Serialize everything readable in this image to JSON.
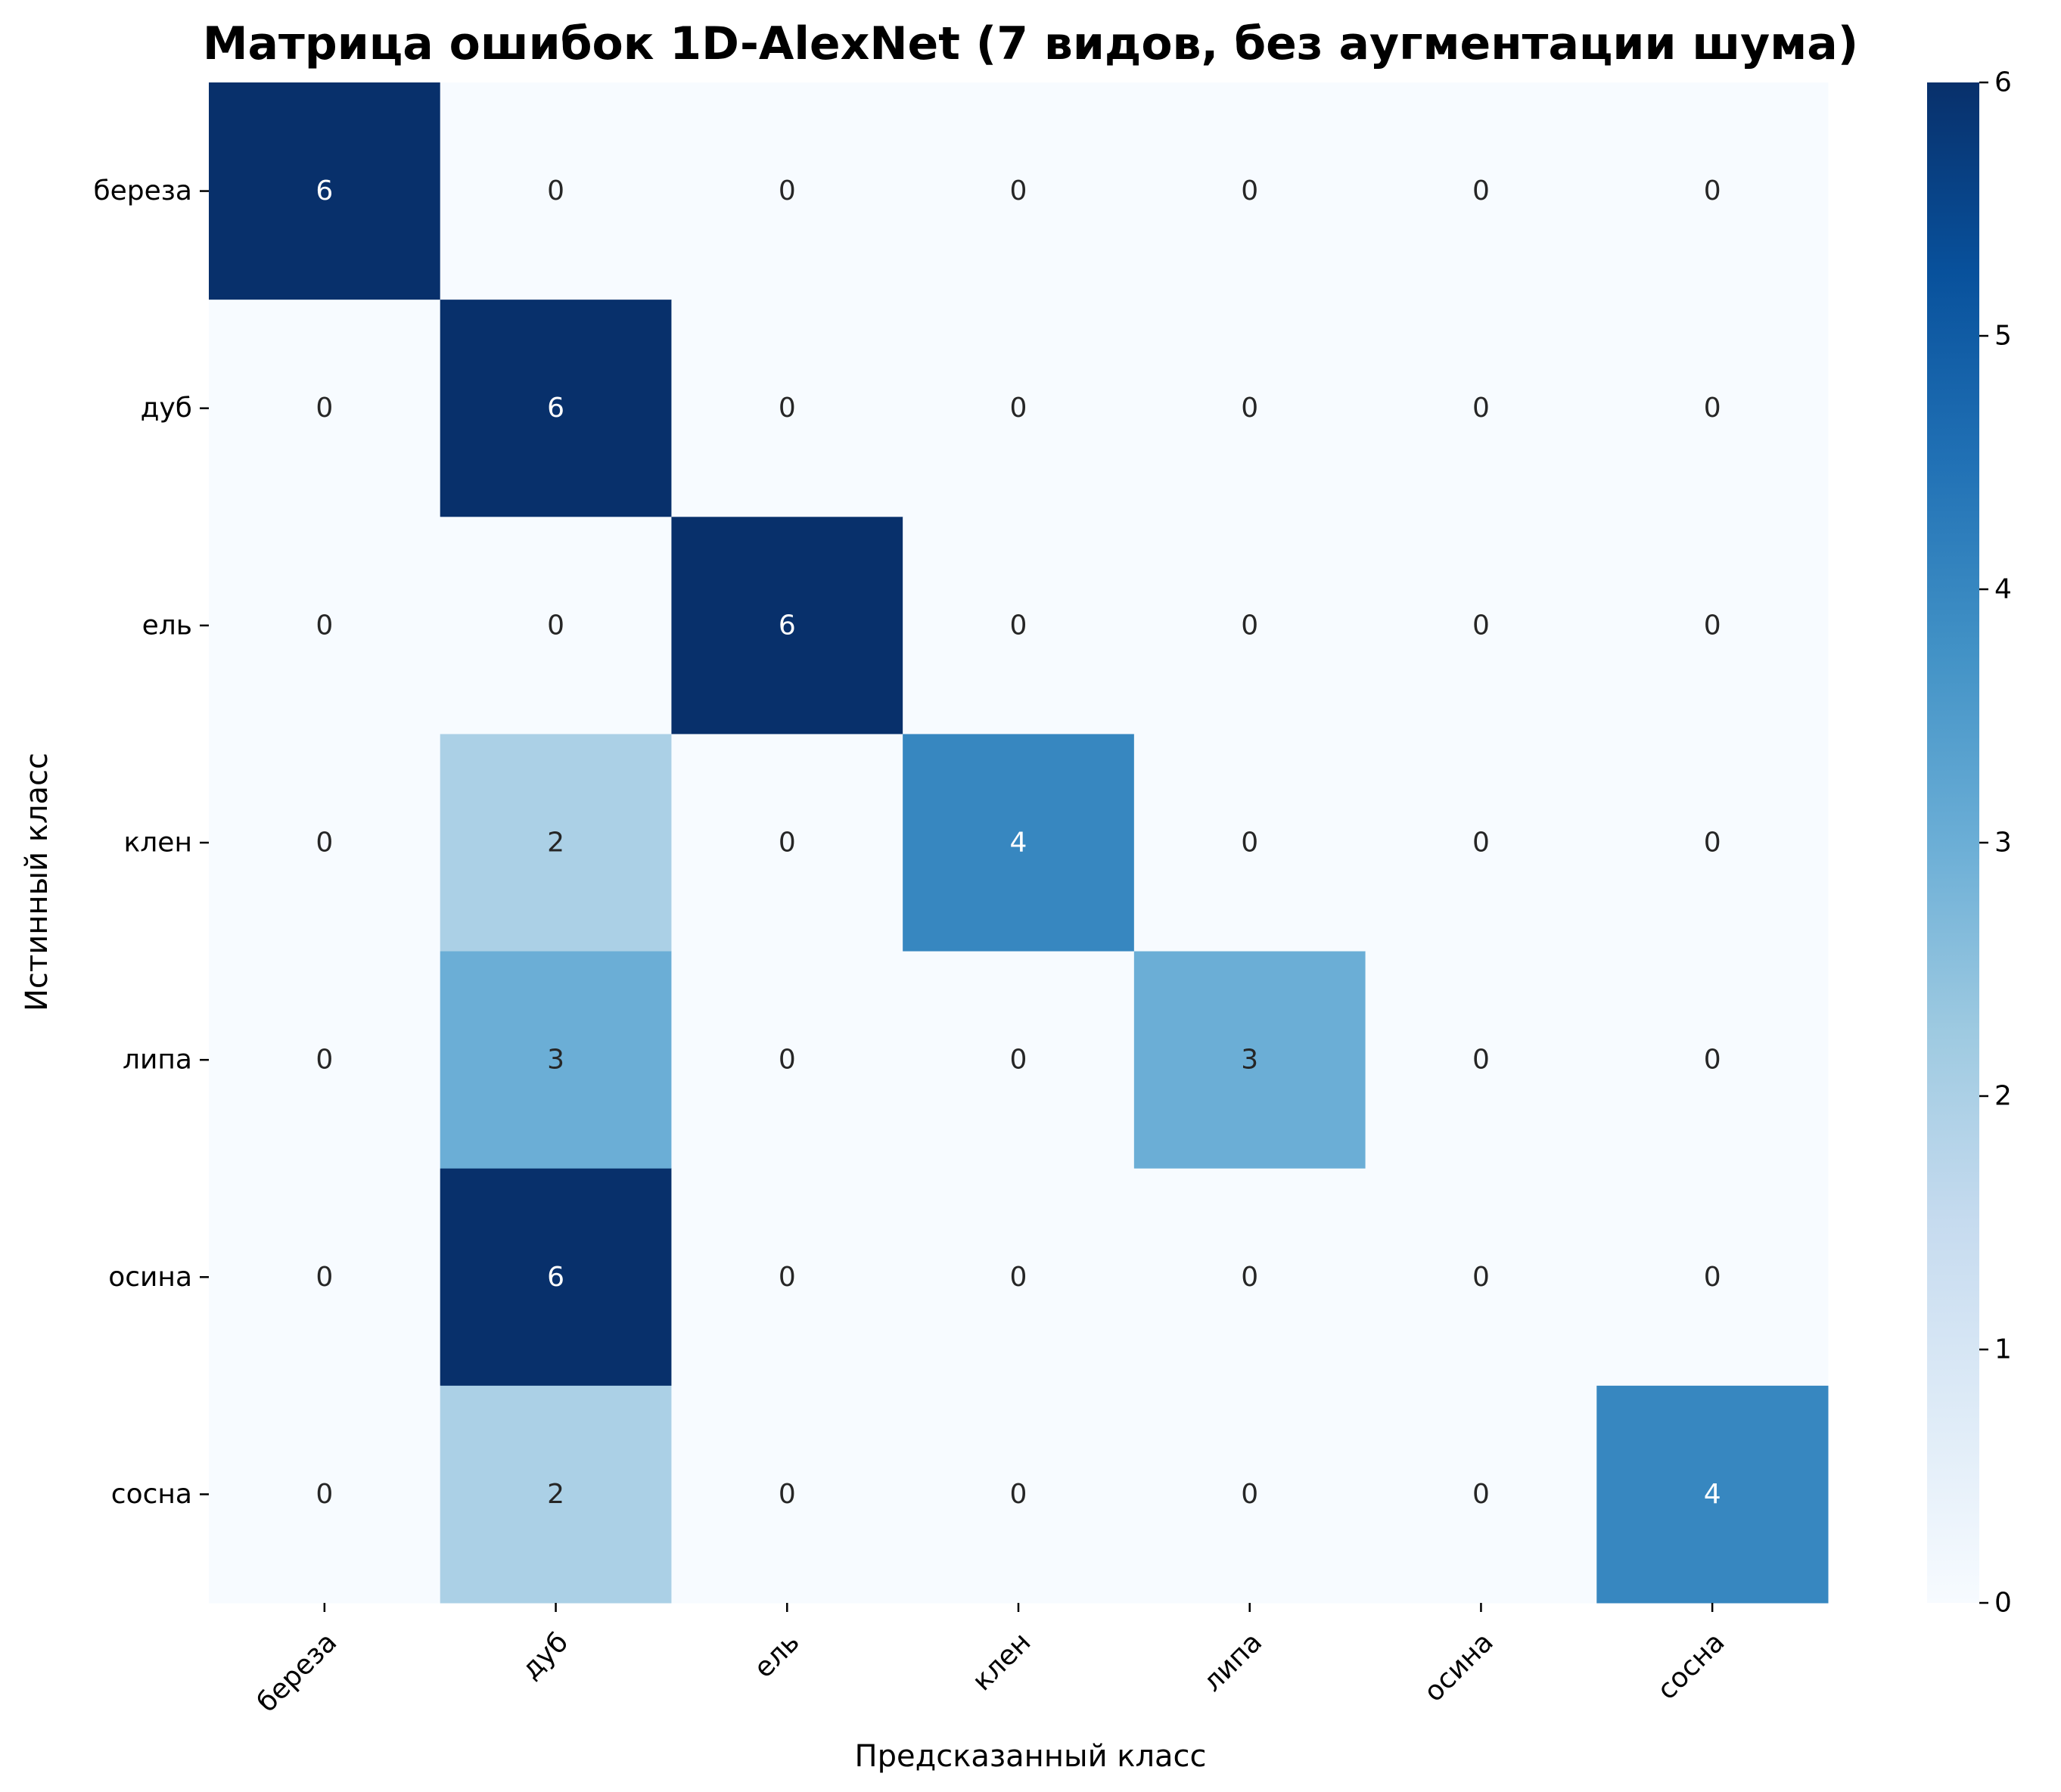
{
  "chart_data": {
    "type": "heatmap",
    "title": "Матрица ошибок 1D-AlexNet (7 видов, без аугментации шума)",
    "xlabel": "Предсказанный класс",
    "ylabel": "Истинный класс",
    "x_categories": [
      "береза",
      "дуб",
      "ель",
      "клен",
      "липа",
      "осина",
      "сосна"
    ],
    "y_categories": [
      "береза",
      "дуб",
      "ель",
      "клен",
      "липа",
      "осина",
      "сосна"
    ],
    "values": [
      [
        6,
        0,
        0,
        0,
        0,
        0,
        0
      ],
      [
        0,
        6,
        0,
        0,
        0,
        0,
        0
      ],
      [
        0,
        0,
        6,
        0,
        0,
        0,
        0
      ],
      [
        0,
        2,
        0,
        4,
        0,
        0,
        0
      ],
      [
        0,
        3,
        0,
        0,
        3,
        0,
        0
      ],
      [
        0,
        6,
        0,
        0,
        0,
        0,
        0
      ],
      [
        0,
        2,
        0,
        0,
        0,
        0,
        4
      ]
    ],
    "colormap": "Blues",
    "vmin": 0,
    "vmax": 6,
    "colorbar_ticks": [
      0,
      1,
      2,
      3,
      4,
      5,
      6
    ],
    "annotations": true
  }
}
